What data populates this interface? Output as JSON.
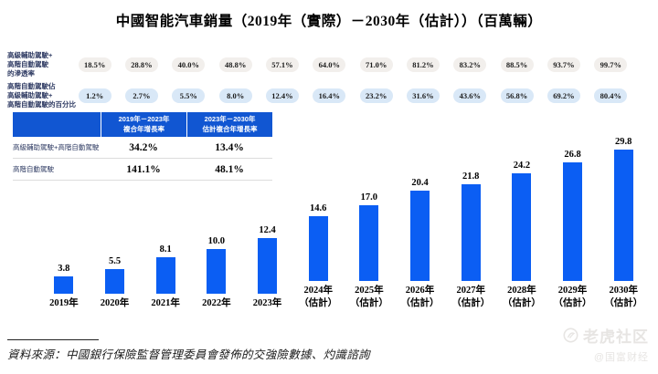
{
  "colors": {
    "bar_blue": "#0b5ef3",
    "table_header_blue": "#1156d2",
    "oval_gray_bg": "#f2efec",
    "oval_blue_bg": "#d9e8f7",
    "label_navy": "#2f3b63",
    "watermark_gray": "#e7e5e3"
  },
  "chart_data": {
    "type": "bar",
    "title": "中國智能汽車銷量（2019年（實際）－2030年（估計））（百萬輛）",
    "unit_label": "百萬輛",
    "categories": [
      "2019年",
      "2020年",
      "2021年",
      "2022年",
      "2023年",
      "2024年（估計）",
      "2025年（估計）",
      "2026年（估計）",
      "2027年（估計）",
      "2028年（估計）",
      "2029年（估計）",
      "2030年（估計）"
    ],
    "x_labels": [
      [
        "2019年"
      ],
      [
        "2020年"
      ],
      [
        "2021年"
      ],
      [
        "2022年"
      ],
      [
        "2023年"
      ],
      [
        "2024年",
        "（估計）"
      ],
      [
        "2025年",
        "（估計）"
      ],
      [
        "2026年",
        "（估計）"
      ],
      [
        "2027年",
        "（估計）"
      ],
      [
        "2028年",
        "（估計）"
      ],
      [
        "2029年",
        "（估計）"
      ],
      [
        "2030年",
        "（估計）"
      ]
    ],
    "values": [
      3.8,
      5.5,
      8.1,
      10.0,
      12.4,
      14.6,
      17.0,
      20.4,
      21.8,
      24.2,
      26.8,
      29.8
    ],
    "ylim": [
      0,
      30
    ],
    "grid": false,
    "legend": "none",
    "bar_color": "#0b5ef3",
    "percent_rows": [
      {
        "name": "penetration-rate",
        "label_lines": [
          "高級輔助駕駛+",
          "高階自動駕駛",
          "的滲透率"
        ],
        "values": [
          "18.5%",
          "28.8%",
          "40.0%",
          "48.8%",
          "57.1%",
          "64.0%",
          "71.0%",
          "81.2%",
          "83.2%",
          "88.5%",
          "93.7%",
          "99.7%"
        ],
        "style": "gray"
      },
      {
        "name": "had-share-of-total",
        "label_lines": [
          "高階自動駕駛佔",
          "高級輔助駕駛+",
          "高階自動駕駛的百分比"
        ],
        "values": [
          "1.2%",
          "2.7%",
          "5.5%",
          "8.0%",
          "12.4%",
          "16.4%",
          "23.2%",
          "31.6%",
          "43.6%",
          "56.8%",
          "69.2%",
          "80.4%"
        ],
        "style": "blue"
      }
    ],
    "cagr_table": {
      "col_headers": [
        [
          "2019年－2023年",
          "複合年增長率"
        ],
        [
          "2023年－2030年",
          "估計複合年增長率"
        ]
      ],
      "rows": [
        {
          "label": "高級輔助駕駛+高階自動駕駛",
          "values": [
            "34.2%",
            "13.4%"
          ]
        },
        {
          "label": "高階自動駕駛",
          "values": [
            "141.1%",
            "48.1%"
          ]
        }
      ]
    }
  },
  "source_note": "資料來源：中國銀行保險監督管理委員會發佈的交強險數據、灼識諮詢",
  "watermark": {
    "brand": "老虎社区",
    "handle": "@国富财经"
  }
}
